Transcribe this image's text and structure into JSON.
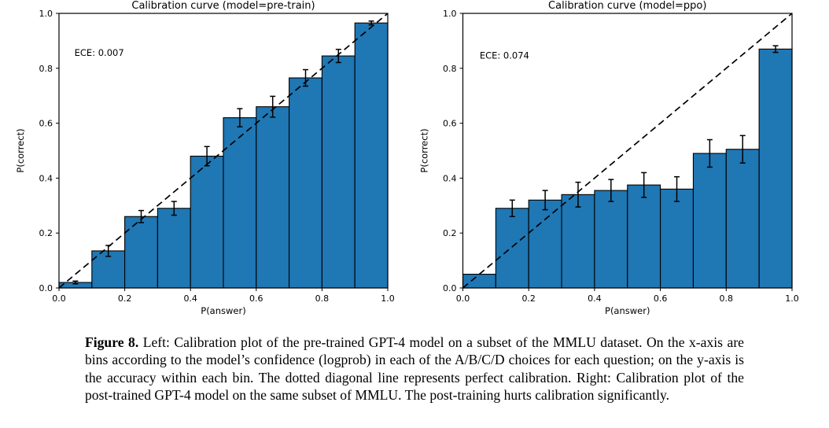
{
  "colors": {
    "bar_fill": "#1f77b4",
    "bar_stroke": "#000000",
    "diagonal_line": "#000000",
    "axis": "#000000",
    "background": "#ffffff"
  },
  "chart_data": [
    {
      "type": "bar",
      "title": "Calibration curve (model=pre-train)",
      "annotation": "ECE: 0.007",
      "xlabel": "P(answer)",
      "ylabel": "P(correct)",
      "xlim": [
        0.0,
        1.0
      ],
      "ylim": [
        0.0,
        1.0
      ],
      "xticks": [
        0.0,
        0.2,
        0.4,
        0.6,
        0.8,
        1.0
      ],
      "yticks": [
        0.0,
        0.2,
        0.4,
        0.6,
        0.8,
        1.0
      ],
      "grid": false,
      "legend": null,
      "bin_edges": [
        0.0,
        0.1,
        0.2,
        0.3,
        0.4,
        0.5,
        0.6,
        0.7,
        0.8,
        0.9,
        1.0
      ],
      "values": [
        0.02,
        0.135,
        0.26,
        0.29,
        0.48,
        0.62,
        0.66,
        0.765,
        0.845,
        0.965
      ],
      "errors": [
        0.005,
        0.02,
        0.022,
        0.025,
        0.035,
        0.033,
        0.038,
        0.03,
        0.024,
        0.007
      ],
      "diagonal_line": {
        "from": [
          0,
          0
        ],
        "to": [
          1,
          1
        ],
        "style": "dashed",
        "meaning": "perfect calibration"
      }
    },
    {
      "type": "bar",
      "title": "Calibration curve (model=ppo)",
      "annotation": "ECE: 0.074",
      "xlabel": "P(answer)",
      "ylabel": "P(correct)",
      "xlim": [
        0.0,
        1.0
      ],
      "ylim": [
        0.0,
        1.0
      ],
      "xticks": [
        0.0,
        0.2,
        0.4,
        0.6,
        0.8,
        1.0
      ],
      "yticks": [
        0.0,
        0.2,
        0.4,
        0.6,
        0.8,
        1.0
      ],
      "grid": false,
      "legend": null,
      "bin_edges": [
        0.0,
        0.1,
        0.2,
        0.3,
        0.4,
        0.5,
        0.6,
        0.7,
        0.8,
        0.9,
        1.0
      ],
      "values": [
        0.05,
        0.29,
        0.32,
        0.34,
        0.355,
        0.375,
        0.36,
        0.49,
        0.505,
        0.87
      ],
      "errors": [
        0,
        0.03,
        0.035,
        0.045,
        0.04,
        0.045,
        0.045,
        0.05,
        0.05,
        0.012
      ],
      "diagonal_line": {
        "from": [
          0,
          0
        ],
        "to": [
          1,
          1
        ],
        "style": "dashed",
        "meaning": "perfect calibration"
      }
    }
  ],
  "figure": {
    "caption_label": "Figure 8.",
    "caption_text": " Left: Calibration plot of the pre-trained GPT-4 model on a subset of the MMLU dataset. On the x-axis are bins according to the model’s confidence (logprob) in each of the A/B/C/D choices for each question; on the y-axis is the accuracy within each bin. The dotted diagonal line represents perfect calibration. Right: Calibration plot of the post-trained GPT-4 model on the same subset of MMLU. The post-training hurts calibration significantly."
  }
}
